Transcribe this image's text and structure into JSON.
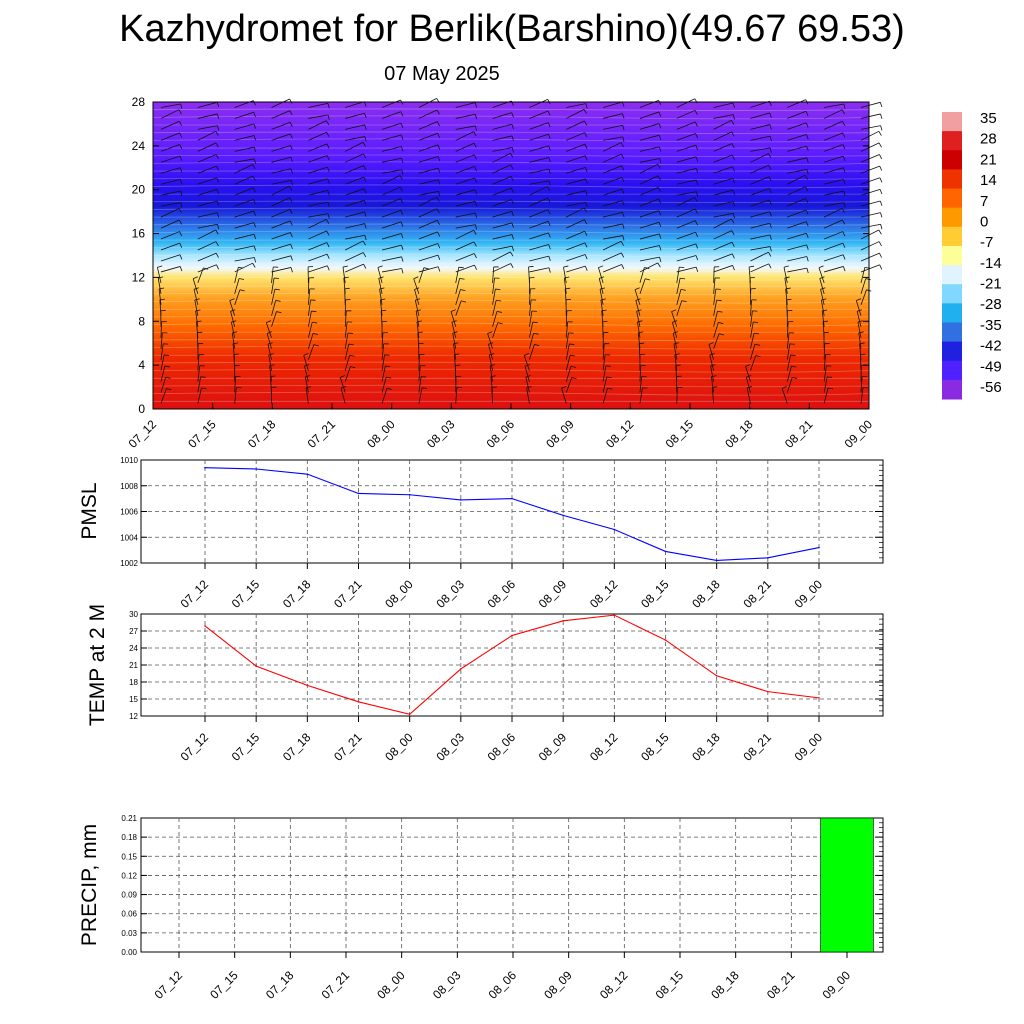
{
  "title": "Kazhydromet for Berlik(Barshino)(49.67 69.53)",
  "subtitle": "07 May 2025",
  "time_labels": [
    "07_12",
    "07_15",
    "07_18",
    "07_21",
    "08_00",
    "08_03",
    "08_06",
    "08_09",
    "08_12",
    "08_15",
    "08_18",
    "08_21",
    "09_00"
  ],
  "chart_data": [
    {
      "type": "heatmap",
      "name": "vertical-temperature-cross-section",
      "y_ticks": [
        0,
        4,
        8,
        12,
        16,
        20,
        24,
        28
      ],
      "ylim": [
        0,
        28
      ],
      "x": [
        "07_12",
        "07_15",
        "07_18",
        "07_21",
        "08_00",
        "08_03",
        "08_06",
        "08_09",
        "08_12",
        "08_15",
        "08_18",
        "08_21",
        "09_00"
      ],
      "colorbar": {
        "ticks": [
          35,
          28,
          21,
          14,
          7,
          0,
          -7,
          -14,
          -21,
          -28,
          -35,
          -42,
          -49,
          -56
        ],
        "colors": [
          "#f0a0a0",
          "#e02020",
          "#cc0000",
          "#ee3300",
          "#ff6600",
          "#ff9900",
          "#ffcc33",
          "#ffff99",
          "#e0f4ff",
          "#80d8ff",
          "#20b0f0",
          "#3070e0",
          "#2020e0",
          "#5020ff",
          "#8a2be2"
        ]
      },
      "wind_barbs": true
    },
    {
      "type": "line",
      "ylabel": "PMSL",
      "ylim": [
        1002,
        1010
      ],
      "y_ticks": [
        1002,
        1004,
        1006,
        1008,
        1010
      ],
      "x": [
        "07_12",
        "07_15",
        "07_18",
        "07_21",
        "08_00",
        "08_03",
        "08_06",
        "08_09",
        "08_12",
        "08_15",
        "08_18",
        "08_21",
        "09_00"
      ],
      "values": [
        1009.4,
        1009.3,
        1008.9,
        1007.4,
        1007.3,
        1006.9,
        1007.0,
        1005.7,
        1004.6,
        1002.9,
        1002.2,
        1002.4,
        1003.2
      ],
      "color": "#0000ff"
    },
    {
      "type": "line",
      "ylabel": "TEMP at 2 M",
      "ylim": [
        12,
        30
      ],
      "y_ticks": [
        12,
        15,
        18,
        21,
        24,
        27,
        30
      ],
      "x": [
        "07_12",
        "07_15",
        "07_18",
        "07_21",
        "08_00",
        "08_03",
        "08_06",
        "08_09",
        "08_12",
        "08_15",
        "08_18",
        "08_21",
        "09_00"
      ],
      "values": [
        27.9,
        20.8,
        17.4,
        14.5,
        12.3,
        20.3,
        26.2,
        28.8,
        29.8,
        25.4,
        19.1,
        16.3,
        15.2
      ],
      "color": "#ff0000"
    },
    {
      "type": "bar",
      "ylabel": "PRECIP, mm",
      "ylim": [
        0,
        0.21
      ],
      "y_ticks": [
        "0.00",
        "0.03",
        "0.06",
        "0.09",
        "0.12",
        "0.15",
        "0.18",
        "0.21"
      ],
      "categories": [
        "07_12",
        "07_15",
        "07_18",
        "07_21",
        "08_00",
        "08_03",
        "08_06",
        "08_09",
        "08_12",
        "08_15",
        "08_18",
        "08_21",
        "09_00"
      ],
      "values": [
        0,
        0,
        0,
        0,
        0,
        0,
        0,
        0,
        0,
        0,
        0,
        0,
        0.21
      ],
      "color": "#00ff00"
    }
  ]
}
